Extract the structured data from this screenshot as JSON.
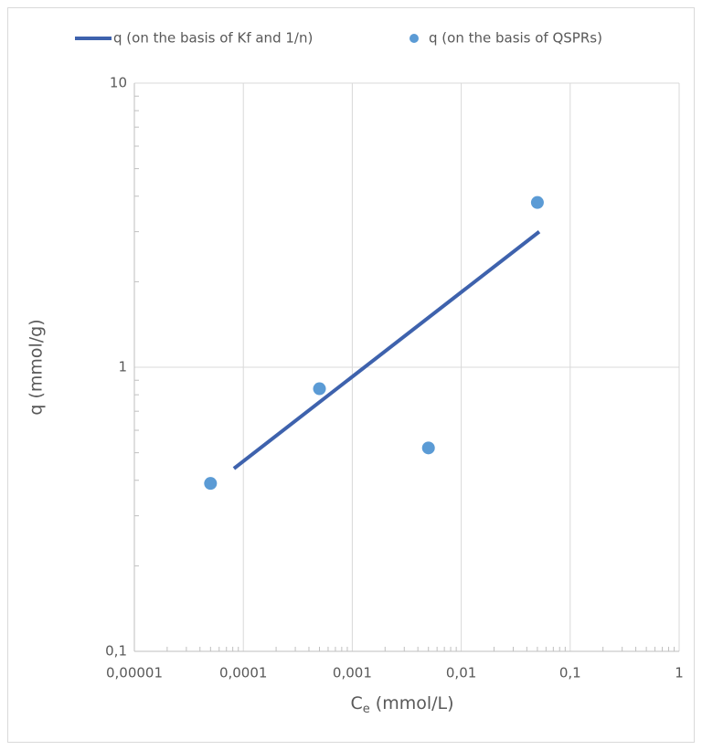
{
  "chart_data": {
    "type": "line",
    "x_label": [
      "C",
      "e",
      " (mmol/L)"
    ],
    "y_label": "q (mmol/g)",
    "x_log": true,
    "y_log": true,
    "grid": true,
    "minor_ticks": true,
    "legend": "top",
    "xlim": [
      1e-05,
      1
    ],
    "xticks": [
      {
        "value": 1e-05,
        "label": "0,00001"
      },
      {
        "value": 0.0001,
        "label": "0,0001"
      },
      {
        "value": 0.001,
        "label": "0,001"
      },
      {
        "value": 0.01,
        "label": "0,01"
      },
      {
        "value": 0.1,
        "label": "0,1"
      },
      1
    ],
    "ylim": [
      0.1,
      10
    ],
    "yticks": [
      {
        "value": 0.1,
        "label": "0,1"
      },
      1,
      10
    ],
    "series": [
      {
        "name": "q (on the basis of Kf and 1/n)",
        "type": "line",
        "color": "#3e62ad",
        "x": [
          8.2e-05,
          0.052
        ],
        "values": [
          0.44,
          3.0
        ]
      },
      {
        "name": "q (on the basis of QSPRs)",
        "type": "scatter",
        "color": "#5b9bd5",
        "x": [
          5e-05,
          0.0005,
          0.005,
          0.05
        ],
        "values": [
          0.39,
          0.84,
          0.52,
          3.8
        ]
      }
    ]
  }
}
